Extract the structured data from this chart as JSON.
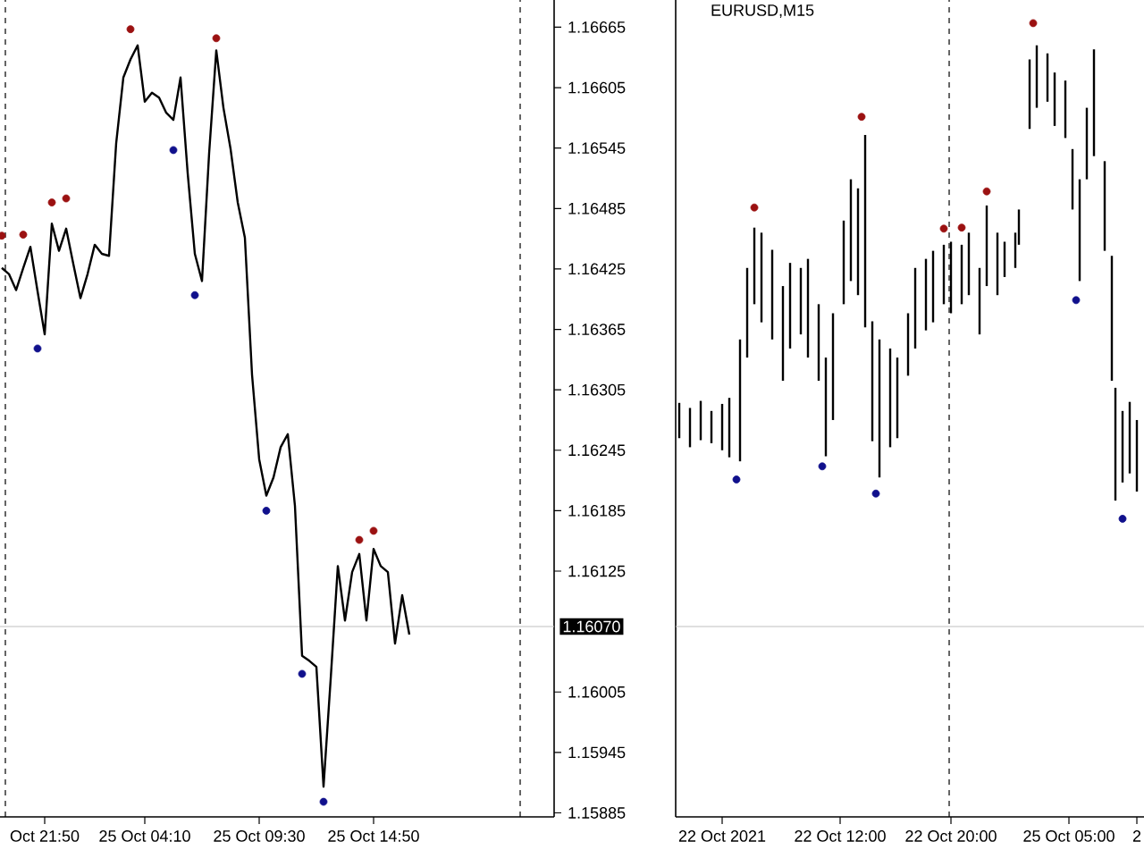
{
  "chart_data": [
    {
      "type": "line",
      "ylim": [
        1.15881,
        1.16692
      ],
      "categories": [
        null,
        null,
        null,
        null,
        null,
        null,
        "Oct 21:50",
        null,
        null,
        null,
        null,
        null,
        null,
        null,
        null,
        null,
        null,
        null,
        null,
        null,
        "25 Oct 04:10",
        null,
        null,
        null,
        null,
        null,
        null,
        null,
        null,
        null,
        null,
        null,
        null,
        null,
        null,
        null,
        "25 Oct 09:30",
        null,
        null,
        null,
        null,
        null,
        null,
        null,
        null,
        null,
        null,
        null,
        null,
        null,
        null,
        null,
        "25 Oct 14:50",
        null,
        null,
        null,
        null,
        null,
        null,
        null,
        null,
        null,
        null,
        null,
        null,
        null,
        null,
        null,
        null,
        null,
        null,
        null,
        null,
        null,
        null,
        null,
        null,
        null
      ],
      "yticks": [
        1.16665,
        1.16605,
        1.16545,
        1.16485,
        1.16425,
        1.16365,
        1.16305,
        1.16245,
        1.16185,
        1.16125,
        1.16005,
        1.15945,
        1.15885
      ],
      "series": [
        {
          "color": "#000000",
          "values": [
            1.16426,
            1.1642,
            1.16404,
            1.16426,
            1.16447,
            1.16403,
            1.1636,
            1.1647,
            1.16443,
            1.16465,
            1.1643,
            1.16396,
            1.1642,
            1.16449,
            1.1644,
            1.16438,
            1.1655,
            1.16615,
            1.16633,
            1.16647,
            1.16591,
            1.166,
            1.16595,
            1.1658,
            1.16573,
            1.16615,
            1.1652,
            1.1644,
            1.16413,
            1.1654,
            1.16642,
            1.16585,
            1.16544,
            1.16491,
            1.16456,
            1.1632,
            1.16236,
            1.162,
            1.16218,
            1.16248,
            1.16261,
            1.1619,
            1.16041,
            1.16036,
            1.1603,
            1.15911,
            1.16018,
            1.1613,
            1.16076,
            1.16124,
            1.16142,
            1.16076,
            1.16147,
            1.1613,
            1.16124,
            1.16053,
            1.16101,
            1.16062,
            null,
            null,
            null,
            null,
            null,
            null,
            null,
            null,
            null,
            null,
            null,
            null,
            null,
            null,
            null,
            null,
            null,
            null,
            null,
            null
          ]
        },
        {
          "type": "scatter",
          "color": "#9b1111",
          "values": [
            1.16458,
            null,
            null,
            1.16459,
            null,
            null,
            null,
            1.16491,
            null,
            1.16495,
            null,
            null,
            null,
            null,
            null,
            null,
            null,
            null,
            1.16663,
            null,
            null,
            null,
            null,
            null,
            null,
            null,
            null,
            null,
            null,
            null,
            1.16654,
            null,
            null,
            null,
            null,
            null,
            null,
            null,
            null,
            null,
            null,
            null,
            null,
            null,
            null,
            null,
            null,
            null,
            null,
            null,
            1.16156,
            null,
            1.16165,
            null,
            null,
            null,
            null,
            null,
            null,
            null,
            null,
            null,
            null,
            null,
            null,
            null,
            null,
            null,
            null,
            null,
            null,
            null,
            null,
            null,
            null,
            null,
            null,
            null
          ]
        },
        {
          "type": "scatter",
          "color": "#10108c",
          "values": [
            null,
            null,
            null,
            null,
            null,
            1.16346,
            null,
            null,
            null,
            null,
            null,
            null,
            null,
            null,
            null,
            null,
            null,
            null,
            null,
            null,
            null,
            null,
            null,
            null,
            1.16543,
            null,
            null,
            1.16399,
            null,
            null,
            null,
            null,
            null,
            null,
            null,
            null,
            null,
            1.16185,
            null,
            null,
            null,
            null,
            1.16023,
            null,
            null,
            1.15896,
            null,
            null,
            null,
            null,
            null,
            null,
            null,
            null,
            null,
            null,
            null,
            null,
            null,
            null,
            null,
            null,
            null,
            null,
            null,
            null,
            null,
            null,
            null,
            null,
            null,
            null,
            null,
            null,
            null,
            null,
            null,
            null
          ]
        }
      ],
      "ref_lines": [
        {
          "axis": "y",
          "value": 1.1607,
          "label": "1.16070",
          "color": "#c0c0c0",
          "line_style": "solid"
        }
      ]
    },
    {
      "type": "bar",
      "title": "EURUSD,M15",
      "tick_labels": "x",
      "ylim": [
        1.15881,
        1.16692
      ],
      "categories": [
        null,
        null,
        null,
        null,
        null,
        null,
        null,
        null,
        null,
        null,
        null,
        null,
        null,
        "22 Oct 2021",
        null,
        null,
        null,
        null,
        null,
        null,
        null,
        null,
        null,
        null,
        null,
        null,
        null,
        null,
        null,
        null,
        null,
        null,
        null,
        null,
        null,
        null,
        null,
        null,
        null,
        null,
        null,
        null,
        null,
        null,
        null,
        null,
        "22 Oct 12:00",
        null,
        null,
        null,
        null,
        null,
        null,
        null,
        null,
        null,
        null,
        null,
        null,
        null,
        null,
        null,
        null,
        null,
        null,
        null,
        null,
        null,
        null,
        null,
        null,
        null,
        null,
        null,
        null,
        null,
        null,
        "22 Oct 20:00",
        null,
        null,
        null,
        null,
        null,
        null,
        null,
        null,
        null,
        null,
        null,
        null,
        null,
        null,
        null,
        null,
        null,
        null,
        null,
        null,
        null,
        null,
        null,
        null,
        null,
        null,
        null,
        null,
        null,
        null,
        null,
        null,
        "25 Oct 05:00",
        null,
        null,
        null,
        null,
        null,
        null,
        null,
        null,
        null,
        null,
        null,
        null,
        null,
        null,
        null,
        null,
        null,
        null,
        "2",
        null
      ],
      "series": [
        {
          "color": "#000000",
          "base": [
            null,
            1.16257,
            null,
            null,
            1.16248,
            null,
            null,
            1.16255,
            null,
            null,
            1.16252,
            null,
            null,
            1.16245,
            null,
            1.16238,
            null,
            null,
            1.16234,
            null,
            1.16337,
            null,
            1.1639,
            null,
            1.16372,
            null,
            null,
            1.16355,
            null,
            null,
            1.16314,
            null,
            1.16346,
            null,
            null,
            1.1636,
            null,
            1.16337,
            null,
            null,
            1.16314,
            null,
            1.16239,
            null,
            1.16275,
            null,
            null,
            1.1639,
            null,
            1.16413,
            null,
            1.16399,
            null,
            1.16367,
            null,
            1.16254,
            null,
            1.16218,
            null,
            null,
            1.16248,
            null,
            1.16257,
            null,
            null,
            1.16319,
            null,
            1.16346,
            null,
            null,
            1.16364,
            null,
            1.16372,
            null,
            null,
            1.1639,
            null,
            1.16381,
            null,
            null,
            1.1639,
            null,
            1.16399,
            null,
            null,
            1.1636,
            null,
            1.16408,
            null,
            null,
            1.16399,
            null,
            1.16417,
            null,
            null,
            1.16426,
            1.16449,
            null,
            null,
            1.16564,
            null,
            1.16585,
            null,
            null,
            1.16591,
            null,
            1.16567,
            null,
            null,
            1.16555,
            null,
            1.16484,
            null,
            1.16413,
            null,
            1.16514,
            null,
            1.16537,
            null,
            null,
            1.16443,
            null,
            1.16314,
            1.16195,
            null,
            1.16213,
            null,
            1.16222,
            null,
            1.16204,
            null
          ],
          "values": [
            null,
            0.00035,
            null,
            null,
            0.00039,
            null,
            null,
            0.00039,
            null,
            null,
            0.00032,
            null,
            null,
            0.00046,
            null,
            0.00059,
            null,
            null,
            0.00121,
            null,
            0.00089,
            null,
            0.00076,
            null,
            0.00089,
            null,
            null,
            0.00089,
            null,
            null,
            0.00094,
            null,
            0.00085,
            null,
            null,
            0.00066,
            null,
            0.00098,
            null,
            null,
            0.00076,
            null,
            0.00098,
            null,
            0.00106,
            null,
            null,
            0.00083,
            null,
            0.00101,
            null,
            0.00106,
            null,
            0.00191,
            null,
            0.00119,
            null,
            0.00137,
            null,
            null,
            0.00098,
            null,
            0.0008,
            null,
            null,
            0.00062,
            null,
            0.0008,
            null,
            null,
            0.00071,
            null,
            0.00071,
            null,
            null,
            0.00059,
            null,
            0.00071,
            null,
            null,
            0.00059,
            null,
            0.00062,
            null,
            null,
            0.00066,
            null,
            0.0008,
            null,
            null,
            0.00062,
            null,
            0.00035,
            null,
            null,
            0.00035,
            0.00035,
            null,
            null,
            0.00069,
            null,
            0.00062,
            null,
            null,
            0.00048,
            null,
            0.00053,
            null,
            null,
            0.00057,
            null,
            0.0006,
            null,
            0.00101,
            null,
            0.00071,
            null,
            0.00106,
            null,
            null,
            0.00089,
            null,
            0.00124,
            0.00112,
            null,
            0.00071,
            null,
            0.00071,
            null,
            0.00071,
            null
          ]
        },
        {
          "type": "scatter",
          "color": "#9b1111",
          "values": [
            null,
            null,
            null,
            null,
            null,
            null,
            null,
            null,
            null,
            null,
            null,
            null,
            null,
            null,
            null,
            null,
            null,
            null,
            null,
            null,
            null,
            null,
            1.16486,
            null,
            null,
            null,
            null,
            null,
            null,
            null,
            null,
            null,
            null,
            null,
            null,
            null,
            null,
            null,
            null,
            null,
            null,
            null,
            null,
            null,
            null,
            null,
            null,
            null,
            null,
            null,
            null,
            null,
            1.16576,
            null,
            null,
            null,
            null,
            null,
            null,
            null,
            null,
            null,
            null,
            null,
            null,
            null,
            null,
            null,
            null,
            null,
            null,
            null,
            null,
            null,
            null,
            1.16465,
            null,
            null,
            null,
            null,
            1.16466,
            null,
            null,
            null,
            null,
            null,
            null,
            1.16502,
            null,
            null,
            null,
            null,
            null,
            null,
            null,
            null,
            null,
            null,
            null,
            null,
            1.16669,
            null,
            null,
            null,
            null,
            null,
            null,
            null,
            null,
            null,
            null,
            null,
            null,
            null,
            null,
            null,
            null,
            null,
            null,
            null,
            null,
            null,
            null,
            null,
            null,
            null,
            null,
            null,
            null,
            null,
            null
          ]
        },
        {
          "type": "scatter",
          "color": "#10108c",
          "values": [
            null,
            null,
            null,
            null,
            null,
            null,
            null,
            null,
            null,
            null,
            null,
            null,
            null,
            null,
            null,
            null,
            null,
            1.16216,
            null,
            null,
            null,
            null,
            null,
            null,
            null,
            null,
            null,
            null,
            null,
            null,
            null,
            null,
            null,
            null,
            null,
            null,
            null,
            null,
            null,
            null,
            null,
            1.16229,
            null,
            null,
            null,
            null,
            null,
            null,
            null,
            null,
            null,
            null,
            null,
            null,
            null,
            null,
            1.16202,
            null,
            null,
            null,
            null,
            null,
            null,
            null,
            null,
            null,
            null,
            null,
            null,
            null,
            null,
            null,
            null,
            null,
            null,
            null,
            null,
            null,
            null,
            null,
            null,
            null,
            null,
            null,
            null,
            null,
            null,
            null,
            null,
            null,
            null,
            null,
            null,
            null,
            null,
            null,
            null,
            null,
            null,
            null,
            null,
            null,
            null,
            null,
            null,
            null,
            null,
            null,
            null,
            null,
            null,
            null,
            1.16394,
            null,
            null,
            null,
            null,
            null,
            null,
            null,
            null,
            null,
            null,
            null,
            null,
            1.16177,
            null,
            null,
            null,
            null,
            null
          ]
        }
      ],
      "ref_lines": [
        {
          "axis": "y",
          "value": 1.1607,
          "color": "#c0c0c0",
          "line_style": "solid"
        }
      ]
    }
  ]
}
